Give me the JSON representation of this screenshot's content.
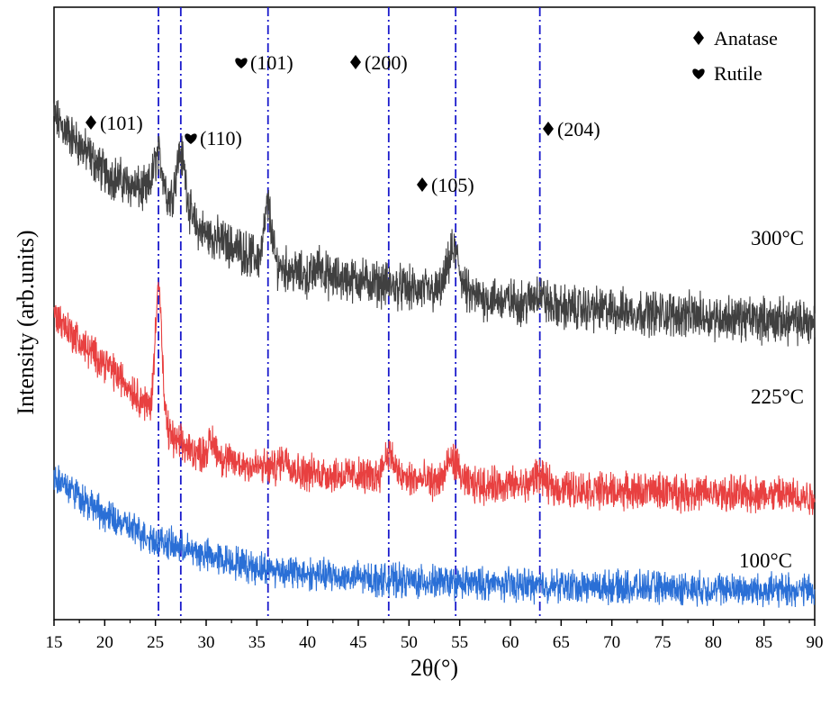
{
  "chart_data": {
    "type": "line",
    "xlabel": "2θ(°)",
    "ylabel": "Intensity (arb.units)",
    "xlim": [
      15,
      90
    ],
    "x_ticks": [
      "15",
      "20",
      "25",
      "30",
      "35",
      "40",
      "45",
      "50",
      "55",
      "60",
      "65",
      "70",
      "75",
      "80",
      "85",
      "90"
    ],
    "y_ticks": false,
    "grid": false,
    "legend": {
      "placement": "top-right",
      "entries": [
        {
          "symbol": "diamond",
          "label": "Anatase"
        },
        {
          "symbol": "heart",
          "label": "Rutile"
        }
      ]
    },
    "reference_lines": [
      25.3,
      27.5,
      36.1,
      48.0,
      54.6,
      62.9
    ],
    "annotations": [
      {
        "symbol": "diamond",
        "text": "(101)"
      },
      {
        "symbol": "heart",
        "text": "(110)"
      },
      {
        "symbol": "heart",
        "text": "(101)"
      },
      {
        "symbol": "diamond",
        "text": "(200)"
      },
      {
        "symbol": "diamond",
        "text": "(105)"
      },
      {
        "symbol": "diamond",
        "text": "(204)"
      }
    ],
    "series": [
      {
        "name": "300°C",
        "color": "#404040",
        "baseline": [
          [
            15,
            0.82
          ],
          [
            20,
            0.73
          ],
          [
            25,
            0.69
          ],
          [
            30,
            0.63
          ],
          [
            35,
            0.59
          ],
          [
            40,
            0.56
          ],
          [
            45,
            0.555
          ],
          [
            50,
            0.54
          ],
          [
            55,
            0.53
          ],
          [
            60,
            0.52
          ],
          [
            65,
            0.51
          ],
          [
            70,
            0.505
          ],
          [
            75,
            0.5
          ],
          [
            80,
            0.495
          ],
          [
            85,
            0.49
          ],
          [
            90,
            0.485
          ]
        ],
        "peaks": [
          {
            "x": 25.3,
            "height": 0.07,
            "width": 0.5
          },
          {
            "x": 27.5,
            "height": 0.1,
            "width": 0.5
          },
          {
            "x": 36.1,
            "height": 0.09,
            "width": 0.35
          },
          {
            "x": 41.2,
            "height": 0.02,
            "width": 0.4
          },
          {
            "x": 54.4,
            "height": 0.07,
            "width": 0.6
          },
          {
            "x": 62.8,
            "height": 0.02,
            "width": 0.5
          }
        ],
        "noise": 0.055
      },
      {
        "name": "225°C",
        "color": "#e84040",
        "baseline": [
          [
            15,
            0.5
          ],
          [
            18,
            0.445
          ],
          [
            20,
            0.42
          ],
          [
            23,
            0.37
          ],
          [
            25,
            0.335
          ],
          [
            27,
            0.29
          ],
          [
            30,
            0.265
          ],
          [
            35,
            0.25
          ],
          [
            40,
            0.24
          ],
          [
            45,
            0.235
          ],
          [
            50,
            0.23
          ],
          [
            55,
            0.22
          ],
          [
            60,
            0.22
          ],
          [
            65,
            0.215
          ],
          [
            70,
            0.21
          ],
          [
            75,
            0.21
          ],
          [
            80,
            0.205
          ],
          [
            85,
            0.205
          ],
          [
            90,
            0.2
          ]
        ],
        "peaks": [
          {
            "x": 25.3,
            "height": 0.22,
            "width": 0.32
          },
          {
            "x": 30.6,
            "height": 0.025,
            "width": 0.5
          },
          {
            "x": 37.8,
            "height": 0.02,
            "width": 0.5
          },
          {
            "x": 48.0,
            "height": 0.04,
            "width": 0.5
          },
          {
            "x": 54.3,
            "height": 0.04,
            "width": 0.6
          },
          {
            "x": 62.8,
            "height": 0.02,
            "width": 0.5
          }
        ],
        "noise": 0.045
      },
      {
        "name": "100°C",
        "color": "#2a6fd6",
        "baseline": [
          [
            15,
            0.235
          ],
          [
            20,
            0.17
          ],
          [
            25,
            0.13
          ],
          [
            30,
            0.105
          ],
          [
            35,
            0.085
          ],
          [
            40,
            0.075
          ],
          [
            45,
            0.068
          ],
          [
            50,
            0.063
          ],
          [
            55,
            0.06
          ],
          [
            60,
            0.057
          ],
          [
            65,
            0.055
          ],
          [
            70,
            0.053
          ],
          [
            75,
            0.052
          ],
          [
            80,
            0.05
          ],
          [
            85,
            0.049
          ],
          [
            90,
            0.048
          ]
        ],
        "peaks": [],
        "noise": 0.04
      }
    ]
  }
}
